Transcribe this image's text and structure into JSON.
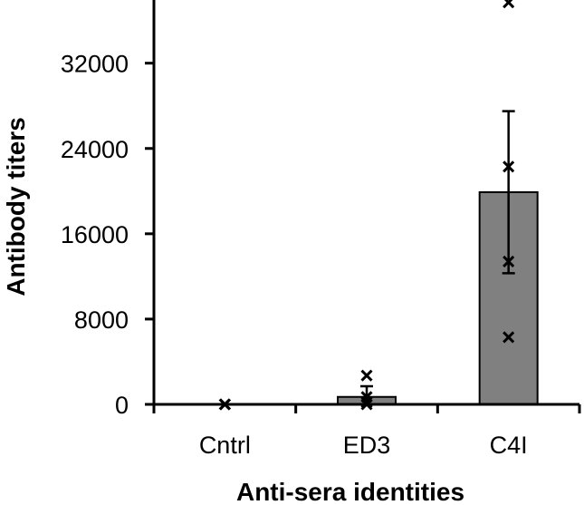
{
  "chart_data": {
    "type": "bar",
    "categories": [
      "Cntrl",
      "ED3",
      "C4I"
    ],
    "values": [
      0,
      700,
      19900
    ],
    "error_bars": [
      0,
      1000,
      7600
    ],
    "points": [
      [
        0,
        0,
        0,
        0
      ],
      [
        0,
        200,
        700,
        2700
      ],
      [
        6300,
        13400,
        22300,
        37700
      ]
    ],
    "xlabel": "Anti-sera identities",
    "ylabel": "Antibody titers",
    "ylim": [
      0,
      37500
    ],
    "yticks": [
      0,
      8000,
      16000,
      24000,
      32000
    ],
    "ytick_labels": [
      "0",
      "8000",
      "16000",
      "24000",
      "32000"
    ],
    "grid": false,
    "legend": "none",
    "colors": {
      "bar_fill": "#808080",
      "bar_stroke": "#000000",
      "marker": "#000000"
    }
  }
}
